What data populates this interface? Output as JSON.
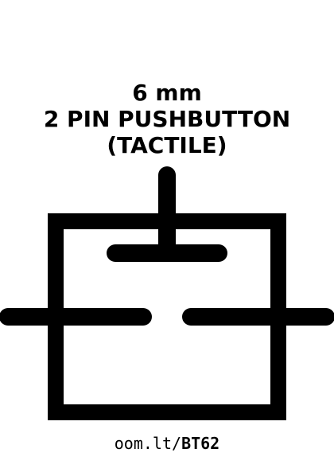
{
  "title": {
    "line1": "6 mm",
    "line2": "2 PIN PUSHBUTTON",
    "line3": "(TACTILE)"
  },
  "footer": {
    "prefix": "oom.lt/",
    "code": "BT62"
  },
  "colors": {
    "ink": "#000000",
    "background": "#ffffff"
  }
}
